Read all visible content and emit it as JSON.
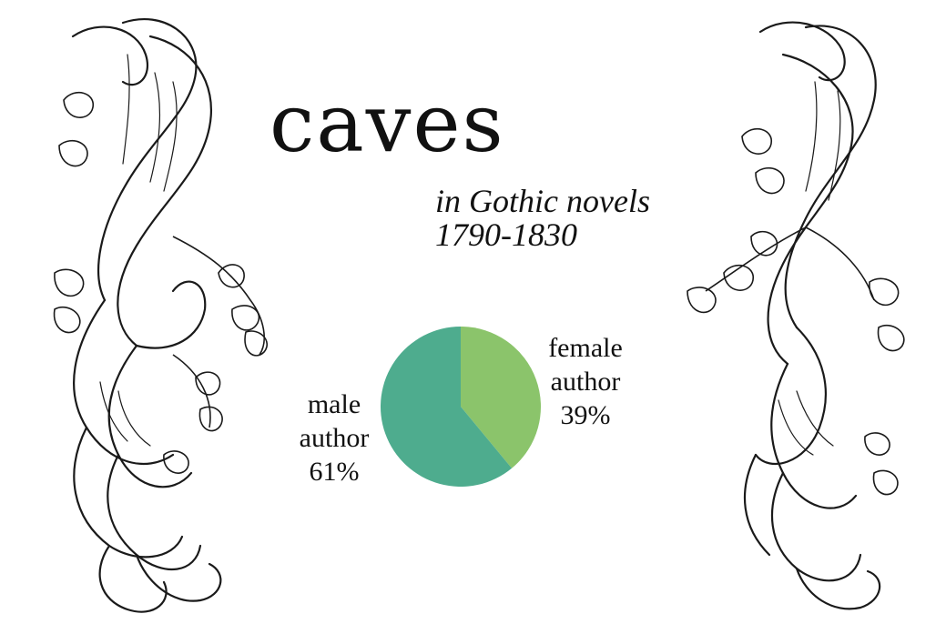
{
  "title": "caves",
  "subtitle": [
    "in Gothic novels",
    "1790-1830"
  ],
  "chart_data": {
    "type": "pie",
    "slices": [
      {
        "name": "female author",
        "label_lines": [
          "female",
          "author"
        ],
        "value": 39,
        "value_label": "39%",
        "color": "#8bc46b"
      },
      {
        "name": "male author",
        "label_lines": [
          "male",
          "author"
        ],
        "value": 61,
        "value_label": "61%",
        "color": "#4eac8e"
      }
    ]
  },
  "decoration": {
    "icon": "ornamental-scroll-icon",
    "ink_color": "#1a1a1a"
  }
}
